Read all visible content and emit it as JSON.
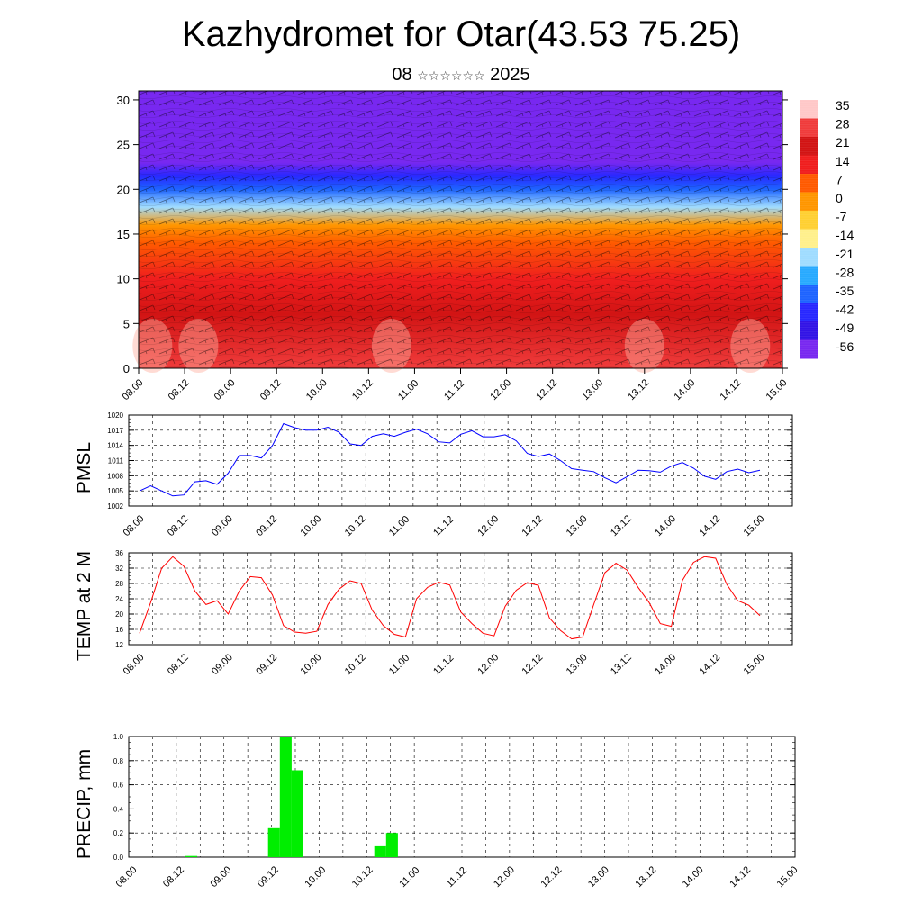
{
  "header": {
    "title": "Kazhydromet for Otar(43.53 75.25)",
    "date_day": "08",
    "date_stars": "☆☆☆☆☆☆",
    "date_year": "2025"
  },
  "chart_data": [
    {
      "type": "heatmap",
      "title": "",
      "ylabel": "",
      "ylim": [
        0,
        31
      ],
      "yticks": [
        0,
        5,
        10,
        15,
        20,
        25,
        30
      ],
      "x_tick_labels": [
        "08.00",
        "08.12",
        "09.00",
        "09.12",
        "10.00",
        "10.12",
        "11.00",
        "11.12",
        "12.00",
        "12.12",
        "13.00",
        "13.12",
        "14.00",
        "14.12",
        "15.00"
      ],
      "colorbar": {
        "labels": [
          "35",
          "28",
          "21",
          "14",
          "7",
          "0",
          "-7",
          "-14",
          "-21",
          "-28",
          "-35",
          "-42",
          "-49",
          "-56"
        ],
        "colors": [
          "#ffc8c8",
          "#f03c3c",
          "#d21414",
          "#f01e1e",
          "#ff5a00",
          "#ff9600",
          "#ffd032",
          "#fff08c",
          "#a0dcff",
          "#28aaff",
          "#1e64ff",
          "#2828ff",
          "#3214e6",
          "#7828f0"
        ]
      },
      "temperature_profile": {
        "levels": [
          0,
          6,
          10,
          14,
          16,
          18,
          20,
          21.5,
          23,
          24.5,
          26,
          28,
          31
        ],
        "values": [
          28,
          22,
          14,
          7,
          -3,
          -18,
          -32,
          -45,
          -54,
          -58,
          -60,
          -64,
          -70
        ]
      },
      "grid": false,
      "legend": "colorbar-right"
    },
    {
      "type": "line",
      "ylabel": "PMSL",
      "ylim": [
        1002,
        1020
      ],
      "yticks": [
        1002,
        1005,
        1008,
        1011,
        1014,
        1017,
        1020
      ],
      "x_tick_labels": [
        "08.00",
        "08.12",
        "09.00",
        "09.12",
        "10.00",
        "10.12",
        "11.00",
        "11.12",
        "12.00",
        "12.12",
        "13.00",
        "13.12",
        "14.00",
        "14.12",
        "15.00"
      ],
      "x": [
        0,
        3,
        6,
        9,
        12,
        15,
        18,
        21,
        24,
        27,
        30,
        33,
        36,
        39,
        42,
        45,
        48,
        51,
        54,
        57,
        60,
        63,
        66,
        69,
        72,
        75,
        78,
        81,
        84,
        87,
        90,
        93,
        96,
        99,
        102,
        105,
        108,
        111,
        114,
        117,
        120,
        123,
        126,
        129,
        132,
        135,
        138,
        141,
        144,
        147,
        150,
        153,
        156,
        159,
        162,
        165,
        168
      ],
      "values": [
        1005,
        1006,
        1005,
        1004,
        1004.2,
        1006.8,
        1007,
        1006.3,
        1008.5,
        1012,
        1012,
        1011.5,
        1014,
        1018.3,
        1017.5,
        1017,
        1017,
        1017.6,
        1016.6,
        1014.3,
        1014,
        1015.8,
        1016.3,
        1015.8,
        1016.6,
        1017.2,
        1016.3,
        1014.7,
        1014.5,
        1016.2,
        1016.9,
        1015.7,
        1015.7,
        1016.1,
        1014.9,
        1012.4,
        1011.8,
        1012.3,
        1011,
        1009.4,
        1009.1,
        1008.8,
        1007.6,
        1006.6,
        1007.8,
        1009.1,
        1009,
        1008.7,
        1009.9,
        1010.6,
        1009.5,
        1007.9,
        1007.3,
        1008.8,
        1009.3,
        1008.6,
        1009.1
      ],
      "color": "#0000ff",
      "grid": true
    },
    {
      "type": "line",
      "ylabel": "TEMP at 2 M",
      "ylim": [
        12,
        36
      ],
      "yticks": [
        12,
        16,
        20,
        24,
        28,
        32,
        36
      ],
      "x_tick_labels": [
        "08.00",
        "08.12",
        "09.00",
        "09.12",
        "10.00",
        "10.12",
        "11.00",
        "11.12",
        "12.00",
        "12.12",
        "13.00",
        "13.12",
        "14.00",
        "14.12",
        "15.00"
      ],
      "x": [
        0,
        3,
        6,
        9,
        12,
        15,
        18,
        21,
        24,
        27,
        30,
        33,
        36,
        39,
        42,
        45,
        48,
        51,
        54,
        57,
        60,
        63,
        66,
        69,
        72,
        75,
        78,
        81,
        84,
        87,
        90,
        93,
        96,
        99,
        102,
        105,
        108,
        111,
        114,
        117,
        120,
        123,
        126,
        129,
        132,
        135,
        138,
        141,
        144,
        147,
        150,
        153,
        156,
        159,
        162,
        165,
        168
      ],
      "values": [
        15,
        23,
        32,
        35,
        32.5,
        26,
        22.5,
        23.5,
        20,
        26,
        29.8,
        29.5,
        25,
        17,
        15.3,
        15,
        15.5,
        22.5,
        26.5,
        28.7,
        28,
        21,
        17,
        14.7,
        14,
        24,
        27,
        28.3,
        27.6,
        20.5,
        17.5,
        15,
        14.3,
        22,
        26.2,
        28.2,
        27.5,
        19,
        15.7,
        13.5,
        14,
        22.5,
        30.8,
        33.3,
        31.5,
        27,
        23,
        17.5,
        16.8,
        28.8,
        33.5,
        35,
        34.6,
        27.8,
        23.5,
        22.3,
        19.6
      ],
      "color": "#ff0000",
      "grid": true
    },
    {
      "type": "bar",
      "ylabel": "PRECIP, mm",
      "ylim": [
        0,
        1.0
      ],
      "yticks": [
        0.0,
        0.2,
        0.4,
        0.6,
        0.8,
        1.0
      ],
      "ytick_labels": [
        "0.0",
        "0.2",
        "0.4",
        "0.6",
        "0.8",
        "1.0"
      ],
      "x_tick_labels": [
        "08.00",
        "08.12",
        "09.00",
        "09.12",
        "10.00",
        "10.12",
        "11.00",
        "11.12",
        "12.00",
        "12.12",
        "13.00",
        "13.12",
        "14.00",
        "14.12",
        "15.00"
      ],
      "x": [
        15,
        36,
        39,
        42,
        63,
        66
      ],
      "values": [
        0.01,
        0.24,
        1.0,
        0.72,
        0.09,
        0.2
      ],
      "bar_width_hours": 3,
      "color": "#00ee00",
      "grid": true
    }
  ]
}
